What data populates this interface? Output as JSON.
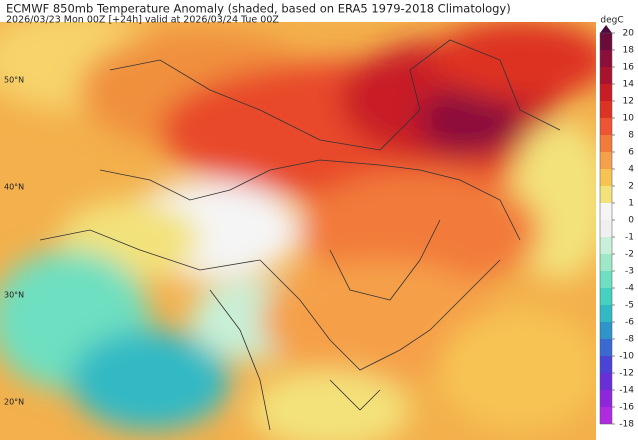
{
  "header": {
    "title": "ECMWF 850mb Temperature Anomaly (shaded, based on ERA5 1979-2018 Climatology)",
    "subtitle": "2026/03/23 Mon 00Z [+24h] valid at 2026/03/24 Tue 00Z"
  },
  "lat_labels": [
    "50°N",
    "40°N",
    "30°N",
    "20°N"
  ],
  "colorbar": {
    "unit": "degC",
    "labels": [
      20,
      18,
      16,
      14,
      12,
      10,
      8,
      6,
      4,
      2,
      1,
      0,
      -1,
      -2,
      -3,
      -4,
      -5,
      -6,
      -8,
      -10,
      -12,
      -14,
      -16,
      -18
    ],
    "colors": [
      "#6a0b3a",
      "#8b0f3a",
      "#a8132e",
      "#c81d25",
      "#dd3322",
      "#ee5533",
      "#f27a3a",
      "#f5a04a",
      "#f7c452",
      "#f3e27a",
      "#f5f5f5",
      "#f0f0f0",
      "#c8f0d8",
      "#9ee8c8",
      "#6edfc0",
      "#45d0c0",
      "#33b9c4",
      "#2d95c8",
      "#3a6ad0",
      "#4a43d6",
      "#6a2ed8",
      "#8e26dc",
      "#b02ae0"
    ],
    "top_color": "#4a0a40"
  }
}
